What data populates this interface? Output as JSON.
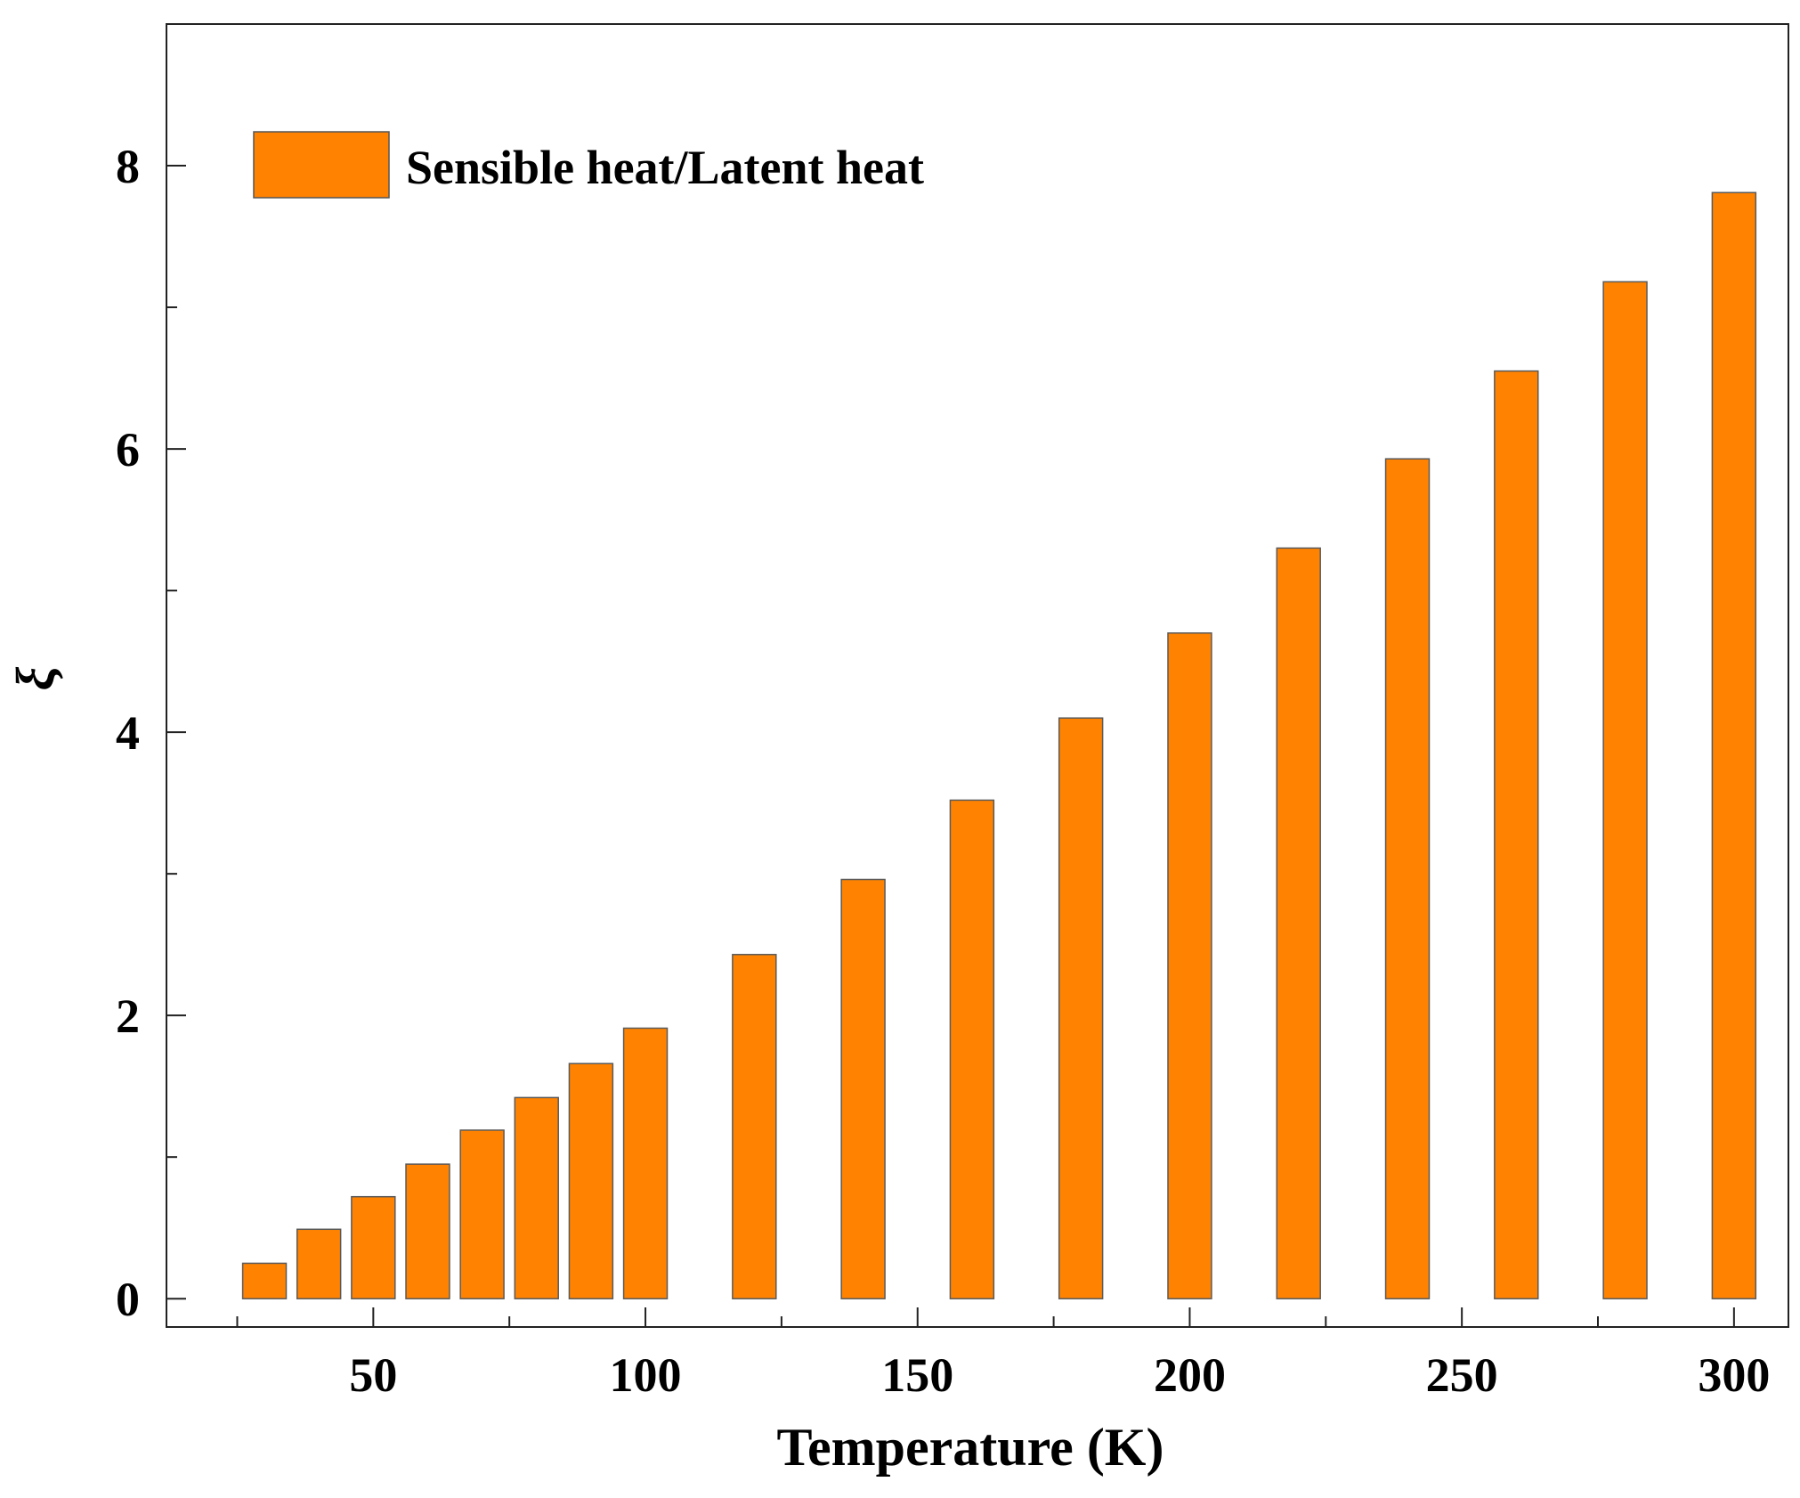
{
  "chart_data": {
    "type": "bar",
    "title": "",
    "xlabel": "Temperature (K)",
    "ylabel": "ξ",
    "xlim": [
      12,
      310
    ],
    "ylim": [
      -0.2,
      9
    ],
    "x_ticks": [
      50,
      100,
      150,
      200,
      250,
      300
    ],
    "x_minor_ticks": [
      25,
      75,
      125,
      175,
      225,
      275
    ],
    "y_ticks": [
      0,
      2,
      4,
      6,
      8
    ],
    "y_minor_ticks": [
      1,
      3,
      5,
      7
    ],
    "bar_width": 8,
    "grid": false,
    "legend_position": "top-left",
    "series": [
      {
        "name": "Sensible heat/Latent heat",
        "color": "#FF8300",
        "x": [
          30,
          40,
          50,
          60,
          70,
          80,
          90,
          100,
          120,
          140,
          160,
          180,
          200,
          220,
          240,
          260,
          280,
          300
        ],
        "values": [
          0.25,
          0.49,
          0.72,
          0.95,
          1.19,
          1.42,
          1.66,
          1.91,
          2.43,
          2.96,
          3.52,
          4.1,
          4.7,
          5.3,
          5.93,
          6.55,
          7.18,
          7.81
        ]
      }
    ]
  }
}
